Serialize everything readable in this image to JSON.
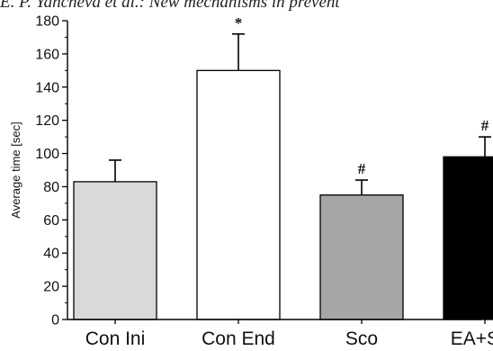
{
  "header_text": "E. P. Yancheva et al.: New mechanisms in prevent",
  "chart_data": {
    "type": "bar",
    "title": "",
    "xlabel": "",
    "ylabel": "Average time [sec]",
    "ylim": [
      0,
      180
    ],
    "yticks": [
      0,
      20,
      40,
      60,
      80,
      100,
      120,
      140,
      160,
      180
    ],
    "categories": [
      "Con Ini",
      "Con End",
      "Sco",
      "EA+Sco"
    ],
    "values": [
      83,
      150,
      75,
      98
    ],
    "errors": [
      13,
      22,
      9,
      12
    ],
    "bar_colors": [
      "#d9d9d9",
      "#ffffff",
      "#a6a6a6",
      "#000000"
    ],
    "significance": [
      "",
      "*",
      "#",
      "#"
    ],
    "grid": false,
    "legend": "none"
  }
}
